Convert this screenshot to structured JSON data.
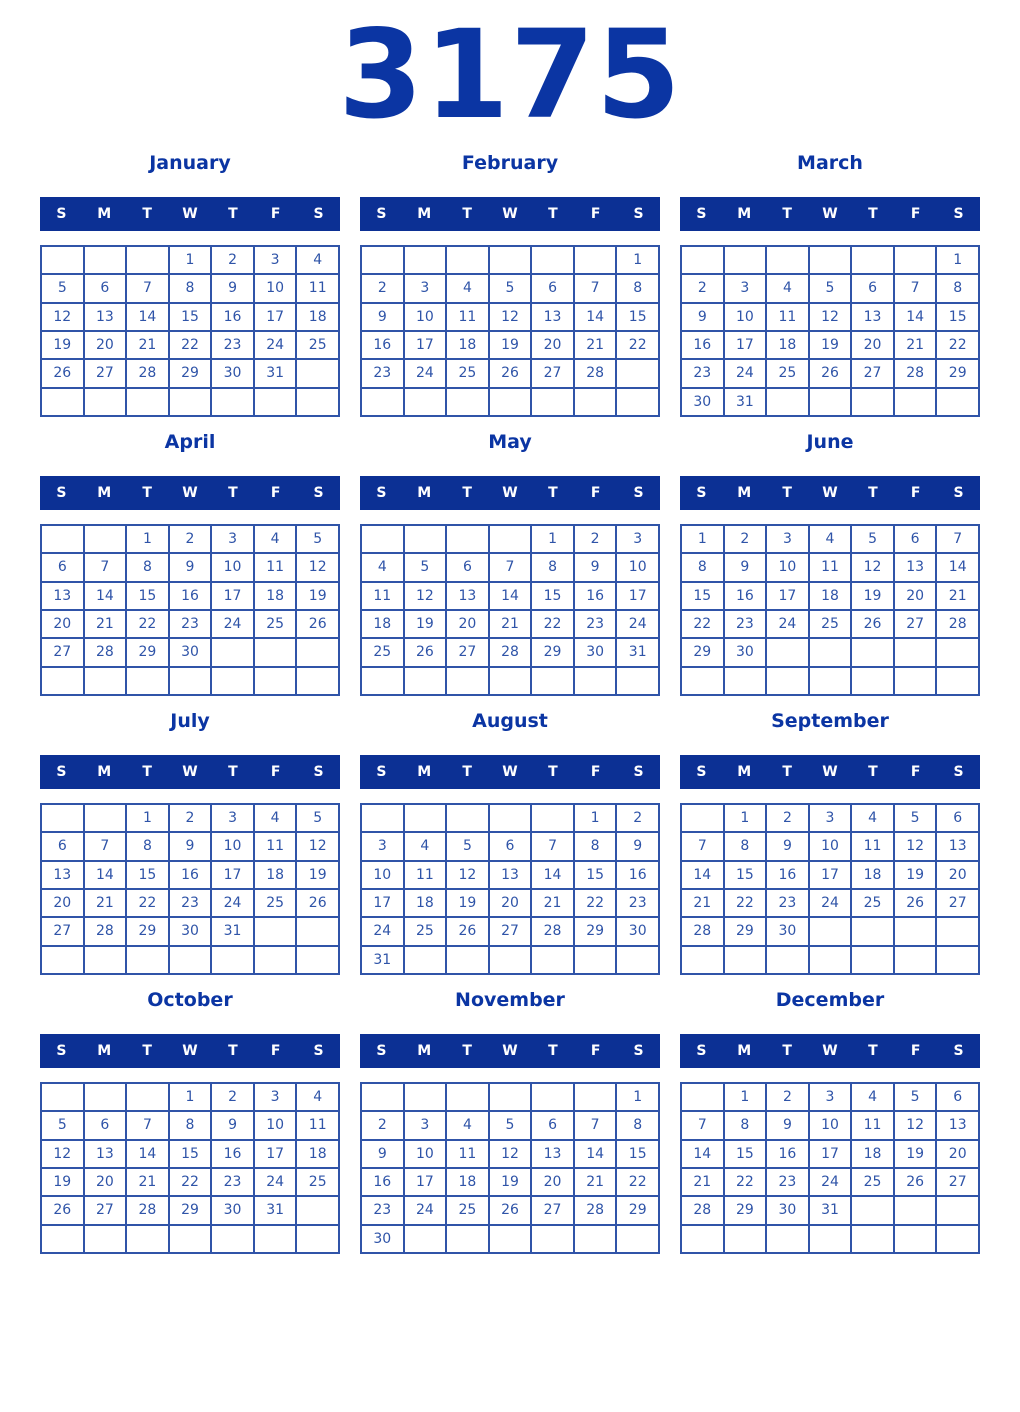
{
  "year_title": "3175",
  "weekday_headers": [
    "S",
    "M",
    "T",
    "W",
    "T",
    "F",
    "S"
  ],
  "colors": {
    "header_bg": "#0c3094",
    "title_text": "#0b35a3",
    "day_text": "#2f54a8",
    "grid_line": "#3054a8",
    "weekday_text": "#ffffff",
    "page_bg": "#ffffff"
  },
  "months": [
    {
      "name": "January",
      "weeks": [
        [
          "",
          "",
          "",
          "1",
          "2",
          "3",
          "4"
        ],
        [
          "5",
          "6",
          "7",
          "8",
          "9",
          "10",
          "11"
        ],
        [
          "12",
          "13",
          "14",
          "15",
          "16",
          "17",
          "18"
        ],
        [
          "19",
          "20",
          "21",
          "22",
          "23",
          "24",
          "25"
        ],
        [
          "26",
          "27",
          "28",
          "29",
          "30",
          "31",
          ""
        ],
        [
          "",
          "",
          "",
          "",
          "",
          "",
          ""
        ]
      ]
    },
    {
      "name": "February",
      "weeks": [
        [
          "",
          "",
          "",
          "",
          "",
          "",
          "1"
        ],
        [
          "2",
          "3",
          "4",
          "5",
          "6",
          "7",
          "8"
        ],
        [
          "9",
          "10",
          "11",
          "12",
          "13",
          "14",
          "15"
        ],
        [
          "16",
          "17",
          "18",
          "19",
          "20",
          "21",
          "22"
        ],
        [
          "23",
          "24",
          "25",
          "26",
          "27",
          "28",
          ""
        ],
        [
          "",
          "",
          "",
          "",
          "",
          "",
          ""
        ]
      ]
    },
    {
      "name": "March",
      "weeks": [
        [
          "",
          "",
          "",
          "",
          "",
          "",
          "1"
        ],
        [
          "2",
          "3",
          "4",
          "5",
          "6",
          "7",
          "8"
        ],
        [
          "9",
          "10",
          "11",
          "12",
          "13",
          "14",
          "15"
        ],
        [
          "16",
          "17",
          "18",
          "19",
          "20",
          "21",
          "22"
        ],
        [
          "23",
          "24",
          "25",
          "26",
          "27",
          "28",
          "29"
        ],
        [
          "30",
          "31",
          "",
          "",
          "",
          "",
          ""
        ]
      ]
    },
    {
      "name": "April",
      "weeks": [
        [
          "",
          "",
          "1",
          "2",
          "3",
          "4",
          "5"
        ],
        [
          "6",
          "7",
          "8",
          "9",
          "10",
          "11",
          "12"
        ],
        [
          "13",
          "14",
          "15",
          "16",
          "17",
          "18",
          "19"
        ],
        [
          "20",
          "21",
          "22",
          "23",
          "24",
          "25",
          "26"
        ],
        [
          "27",
          "28",
          "29",
          "30",
          "",
          "",
          ""
        ],
        [
          "",
          "",
          "",
          "",
          "",
          "",
          ""
        ]
      ]
    },
    {
      "name": "May",
      "weeks": [
        [
          "",
          "",
          "",
          "",
          "1",
          "2",
          "3"
        ],
        [
          "4",
          "5",
          "6",
          "7",
          "8",
          "9",
          "10"
        ],
        [
          "11",
          "12",
          "13",
          "14",
          "15",
          "16",
          "17"
        ],
        [
          "18",
          "19",
          "20",
          "21",
          "22",
          "23",
          "24"
        ],
        [
          "25",
          "26",
          "27",
          "28",
          "29",
          "30",
          "31"
        ],
        [
          "",
          "",
          "",
          "",
          "",
          "",
          ""
        ]
      ]
    },
    {
      "name": "June",
      "weeks": [
        [
          "1",
          "2",
          "3",
          "4",
          "5",
          "6",
          "7"
        ],
        [
          "8",
          "9",
          "10",
          "11",
          "12",
          "13",
          "14"
        ],
        [
          "15",
          "16",
          "17",
          "18",
          "19",
          "20",
          "21"
        ],
        [
          "22",
          "23",
          "24",
          "25",
          "26",
          "27",
          "28"
        ],
        [
          "29",
          "30",
          "",
          "",
          "",
          "",
          ""
        ],
        [
          "",
          "",
          "",
          "",
          "",
          "",
          ""
        ]
      ]
    },
    {
      "name": "July",
      "weeks": [
        [
          "",
          "",
          "1",
          "2",
          "3",
          "4",
          "5"
        ],
        [
          "6",
          "7",
          "8",
          "9",
          "10",
          "11",
          "12"
        ],
        [
          "13",
          "14",
          "15",
          "16",
          "17",
          "18",
          "19"
        ],
        [
          "20",
          "21",
          "22",
          "23",
          "24",
          "25",
          "26"
        ],
        [
          "27",
          "28",
          "29",
          "30",
          "31",
          "",
          ""
        ],
        [
          "",
          "",
          "",
          "",
          "",
          "",
          ""
        ]
      ]
    },
    {
      "name": "August",
      "weeks": [
        [
          "",
          "",
          "",
          "",
          "",
          "1",
          "2"
        ],
        [
          "3",
          "4",
          "5",
          "6",
          "7",
          "8",
          "9"
        ],
        [
          "10",
          "11",
          "12",
          "13",
          "14",
          "15",
          "16"
        ],
        [
          "17",
          "18",
          "19",
          "20",
          "21",
          "22",
          "23"
        ],
        [
          "24",
          "25",
          "26",
          "27",
          "28",
          "29",
          "30"
        ],
        [
          "31",
          "",
          "",
          "",
          "",
          "",
          ""
        ]
      ]
    },
    {
      "name": "September",
      "weeks": [
        [
          "",
          "1",
          "2",
          "3",
          "4",
          "5",
          "6"
        ],
        [
          "7",
          "8",
          "9",
          "10",
          "11",
          "12",
          "13"
        ],
        [
          "14",
          "15",
          "16",
          "17",
          "18",
          "19",
          "20"
        ],
        [
          "21",
          "22",
          "23",
          "24",
          "25",
          "26",
          "27"
        ],
        [
          "28",
          "29",
          "30",
          "",
          "",
          "",
          ""
        ],
        [
          "",
          "",
          "",
          "",
          "",
          "",
          ""
        ]
      ]
    },
    {
      "name": "October",
      "weeks": [
        [
          "",
          "",
          "",
          "1",
          "2",
          "3",
          "4"
        ],
        [
          "5",
          "6",
          "7",
          "8",
          "9",
          "10",
          "11"
        ],
        [
          "12",
          "13",
          "14",
          "15",
          "16",
          "17",
          "18"
        ],
        [
          "19",
          "20",
          "21",
          "22",
          "23",
          "24",
          "25"
        ],
        [
          "26",
          "27",
          "28",
          "29",
          "30",
          "31",
          ""
        ],
        [
          "",
          "",
          "",
          "",
          "",
          "",
          ""
        ]
      ]
    },
    {
      "name": "November",
      "weeks": [
        [
          "",
          "",
          "",
          "",
          "",
          "",
          "1"
        ],
        [
          "2",
          "3",
          "4",
          "5",
          "6",
          "7",
          "8"
        ],
        [
          "9",
          "10",
          "11",
          "12",
          "13",
          "14",
          "15"
        ],
        [
          "16",
          "17",
          "18",
          "19",
          "20",
          "21",
          "22"
        ],
        [
          "23",
          "24",
          "25",
          "26",
          "27",
          "28",
          "29"
        ],
        [
          "30",
          "",
          "",
          "",
          "",
          "",
          ""
        ]
      ]
    },
    {
      "name": "December",
      "weeks": [
        [
          "",
          "1",
          "2",
          "3",
          "4",
          "5",
          "6"
        ],
        [
          "7",
          "8",
          "9",
          "10",
          "11",
          "12",
          "13"
        ],
        [
          "14",
          "15",
          "16",
          "17",
          "18",
          "19",
          "20"
        ],
        [
          "21",
          "22",
          "23",
          "24",
          "25",
          "26",
          "27"
        ],
        [
          "28",
          "29",
          "30",
          "31",
          "",
          "",
          ""
        ],
        [
          "",
          "",
          "",
          "",
          "",
          "",
          ""
        ]
      ]
    }
  ]
}
